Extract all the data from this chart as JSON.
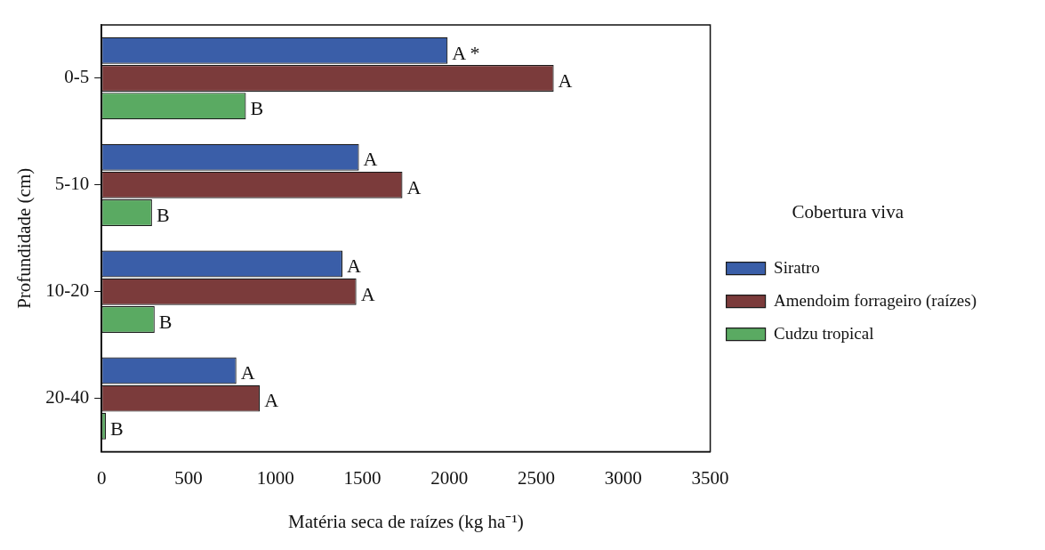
{
  "chart_data": {
    "type": "bar",
    "orientation": "horizontal",
    "xlabel": "Matéria seca de raízes (kg ha⁻¹)",
    "ylabel": "Profundidade (cm)",
    "legend_title": "Cobertura viva",
    "legend": "right",
    "grid": false,
    "categories": [
      "0-5",
      "5-10",
      "10-20",
      "20-40"
    ],
    "xlim": [
      0,
      3500
    ],
    "xticks": [
      0,
      500,
      1000,
      1500,
      2000,
      2500,
      3000,
      3500
    ],
    "series": [
      {
        "name": "Siratro",
        "color": "#3a5ea8",
        "values": [
          1990,
          1480,
          1385,
          775
        ],
        "value_labels": [
          "A *",
          "A",
          "A",
          "A"
        ]
      },
      {
        "name": "Amendoim forrageiro (raízes)",
        "color": "#7b3b3b",
        "values": [
          2600,
          1730,
          1465,
          910
        ],
        "value_labels": [
          "A",
          "A",
          "A",
          "A"
        ]
      },
      {
        "name": "Cudzu tropical",
        "color": "#5aaa62",
        "values": [
          830,
          290,
          305,
          25
        ],
        "value_labels": [
          "B",
          "B",
          "B",
          "B"
        ]
      }
    ]
  }
}
